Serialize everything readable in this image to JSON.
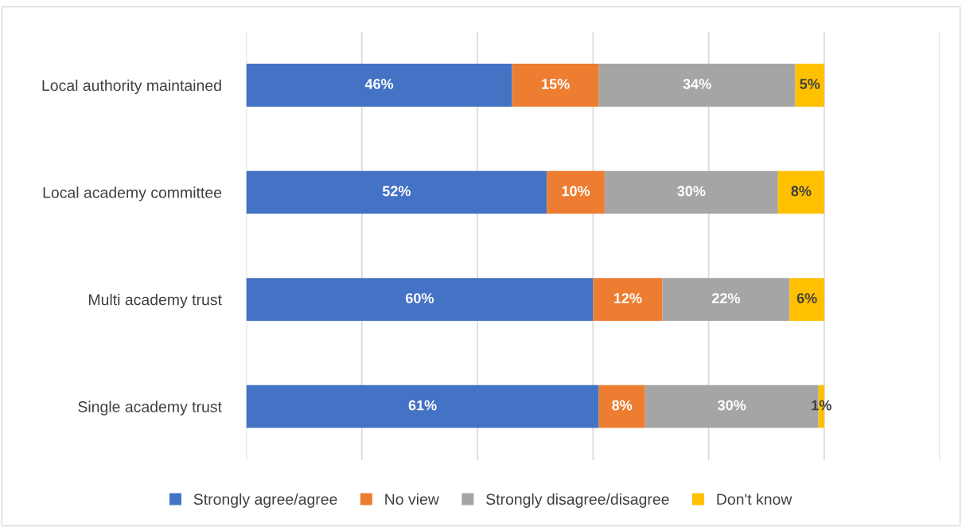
{
  "chart_data": {
    "type": "bar",
    "orientation": "horizontal",
    "stacked": true,
    "categories": [
      "Local authority maintained",
      "Local academy committee",
      "Multi academy trust",
      "Single academy trust"
    ],
    "series": [
      {
        "name": "Strongly agree/agree",
        "color": "#4472c4",
        "values": [
          46,
          52,
          60,
          61
        ],
        "value_labels": [
          "46%",
          "52%",
          "60%",
          "61%"
        ]
      },
      {
        "name": "No view",
        "color": "#ed7d31",
        "values": [
          15,
          10,
          12,
          8
        ],
        "value_labels": [
          "15%",
          "10%",
          "12%",
          "8%"
        ]
      },
      {
        "name": "Strongly disagree/disagree",
        "color": "#a5a5a5",
        "values": [
          34,
          30,
          22,
          30
        ],
        "value_labels": [
          "34%",
          "30%",
          "22%",
          "30%"
        ]
      },
      {
        "name": "Don't know",
        "color": "#ffc000",
        "values": [
          5,
          8,
          6,
          1
        ],
        "value_labels": [
          "5%",
          "8%",
          "6%",
          "1%"
        ]
      }
    ],
    "tick_labels": "y",
    "grid": "x",
    "legend": "bottom"
  }
}
